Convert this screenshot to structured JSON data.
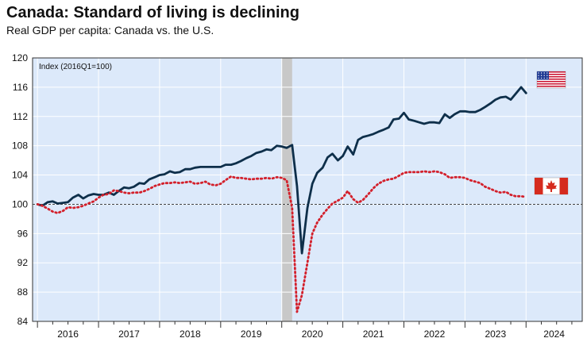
{
  "chart_data": {
    "type": "line",
    "title": "Canada: Standard of living is declining",
    "subtitle": "Real GDP per capita: Canada vs. the U.S.",
    "index_note": "Index (2016Q1=100)",
    "ylim": [
      84,
      120
    ],
    "yticks": [
      84,
      88,
      92,
      96,
      100,
      104,
      108,
      112,
      116,
      120
    ],
    "xlim": [
      2015.92,
      2024.92
    ],
    "year_labels": [
      "2016",
      "2017",
      "2018",
      "2019",
      "2020",
      "2021",
      "2022",
      "2023",
      "2024"
    ],
    "reference_line": 100,
    "recession_shading": [
      2020.0,
      2020.17
    ],
    "grid": true,
    "colors": {
      "background": "#dce9fa",
      "us": "#0e2f4a",
      "canada": "#d3202b",
      "recession": "#c8c8c8",
      "reference": "#444444"
    },
    "series": [
      {
        "id": "us",
        "label_icon": "us-flag-icon",
        "style": "solid",
        "x": [
          2016.0,
          2016.08,
          2016.17,
          2016.25,
          2016.33,
          2016.42,
          2016.5,
          2016.58,
          2016.67,
          2016.75,
          2016.83,
          2016.92,
          2017.0,
          2017.08,
          2017.17,
          2017.25,
          2017.33,
          2017.42,
          2017.5,
          2017.58,
          2017.67,
          2017.75,
          2017.83,
          2017.92,
          2018.0,
          2018.08,
          2018.17,
          2018.25,
          2018.33,
          2018.42,
          2018.5,
          2018.58,
          2018.67,
          2018.75,
          2018.83,
          2018.92,
          2019.0,
          2019.08,
          2019.17,
          2019.25,
          2019.33,
          2019.42,
          2019.5,
          2019.58,
          2019.67,
          2019.75,
          2019.83,
          2019.92,
          2020.0,
          2020.08,
          2020.17,
          2020.25,
          2020.33,
          2020.42,
          2020.5,
          2020.58,
          2020.67,
          2020.75,
          2020.83,
          2020.92,
          2021.0,
          2021.08,
          2021.17,
          2021.25,
          2021.33,
          2021.42,
          2021.5,
          2021.58,
          2021.67,
          2021.75,
          2021.83,
          2021.92,
          2022.0,
          2022.08,
          2022.17,
          2022.25,
          2022.33,
          2022.42,
          2022.5,
          2022.58,
          2022.67,
          2022.75,
          2022.83,
          2022.92,
          2023.0,
          2023.08,
          2023.17,
          2023.25,
          2023.33,
          2023.42,
          2023.5,
          2023.58,
          2023.67,
          2023.75,
          2023.83,
          2023.92,
          2024.0
        ],
        "values": [
          100.0,
          99.8,
          100.3,
          100.4,
          100.1,
          100.2,
          100.3,
          100.9,
          101.3,
          100.8,
          101.2,
          101.4,
          101.3,
          101.3,
          101.6,
          101.3,
          101.8,
          102.3,
          102.2,
          102.4,
          102.9,
          102.8,
          103.4,
          103.7,
          104.0,
          104.1,
          104.5,
          104.3,
          104.4,
          104.8,
          104.8,
          105.0,
          105.1,
          105.1,
          105.1,
          105.1,
          105.1,
          105.4,
          105.4,
          105.6,
          105.9,
          106.3,
          106.6,
          107.0,
          107.2,
          107.5,
          107.4,
          108.0,
          107.9,
          107.7,
          108.1,
          102.5,
          93.3,
          99.5,
          102.8,
          104.3,
          105.0,
          106.4,
          106.9,
          106.0,
          106.6,
          107.9,
          106.8,
          108.8,
          109.2,
          109.4,
          109.6,
          109.9,
          110.2,
          110.5,
          111.6,
          111.7,
          112.5,
          111.6,
          111.4,
          111.2,
          111.0,
          111.2,
          111.2,
          111.1,
          112.3,
          111.8,
          112.3,
          112.7,
          112.7,
          112.6,
          112.6,
          112.9,
          113.3,
          113.8,
          114.3,
          114.6,
          114.7,
          114.3,
          115.1,
          116.0,
          115.2
        ]
      },
      {
        "id": "canada",
        "label_icon": "canada-flag-icon",
        "style": "dotted",
        "x": [
          2016.0,
          2016.08,
          2016.17,
          2016.25,
          2016.33,
          2016.42,
          2016.5,
          2016.58,
          2016.67,
          2016.75,
          2016.83,
          2016.92,
          2017.0,
          2017.08,
          2017.17,
          2017.25,
          2017.33,
          2017.42,
          2017.5,
          2017.58,
          2017.67,
          2017.75,
          2017.83,
          2017.92,
          2018.0,
          2018.08,
          2018.17,
          2018.25,
          2018.33,
          2018.42,
          2018.5,
          2018.58,
          2018.67,
          2018.75,
          2018.83,
          2018.92,
          2019.0,
          2019.08,
          2019.17,
          2019.25,
          2019.33,
          2019.42,
          2019.5,
          2019.58,
          2019.67,
          2019.75,
          2019.83,
          2019.92,
          2020.0,
          2020.08,
          2020.17,
          2020.25,
          2020.33,
          2020.42,
          2020.5,
          2020.58,
          2020.67,
          2020.75,
          2020.83,
          2020.92,
          2021.0,
          2021.08,
          2021.17,
          2021.25,
          2021.33,
          2021.42,
          2021.5,
          2021.58,
          2021.67,
          2021.75,
          2021.83,
          2021.92,
          2022.0,
          2022.08,
          2022.17,
          2022.25,
          2022.33,
          2022.42,
          2022.5,
          2022.58,
          2022.67,
          2022.75,
          2022.83,
          2022.92,
          2023.0,
          2023.08,
          2023.17,
          2023.25,
          2023.33,
          2023.42,
          2023.5,
          2023.58,
          2023.67,
          2023.75,
          2023.83,
          2023.92,
          2024.0
        ],
        "values": [
          100.0,
          99.8,
          99.4,
          99.0,
          98.8,
          99.1,
          99.6,
          99.5,
          99.6,
          99.8,
          100.1,
          100.4,
          100.9,
          101.3,
          101.4,
          101.9,
          101.8,
          101.6,
          101.5,
          101.6,
          101.6,
          101.8,
          102.1,
          102.5,
          102.7,
          102.9,
          102.9,
          103.0,
          102.9,
          103.0,
          103.1,
          102.8,
          102.9,
          103.1,
          102.7,
          102.6,
          102.8,
          103.3,
          103.8,
          103.6,
          103.6,
          103.5,
          103.4,
          103.5,
          103.5,
          103.6,
          103.5,
          103.7,
          103.6,
          103.3,
          99.5,
          85.3,
          87.6,
          92.0,
          96.0,
          97.5,
          98.6,
          99.4,
          100.1,
          100.5,
          100.9,
          101.8,
          100.7,
          100.2,
          100.6,
          101.4,
          102.2,
          102.8,
          103.2,
          103.4,
          103.5,
          103.9,
          104.3,
          104.4,
          104.4,
          104.4,
          104.5,
          104.4,
          104.5,
          104.4,
          104.1,
          103.6,
          103.7,
          103.7,
          103.6,
          103.3,
          103.1,
          102.9,
          102.4,
          102.1,
          101.8,
          101.6,
          101.7,
          101.3,
          101.1,
          101.1,
          101.0
        ]
      }
    ]
  }
}
